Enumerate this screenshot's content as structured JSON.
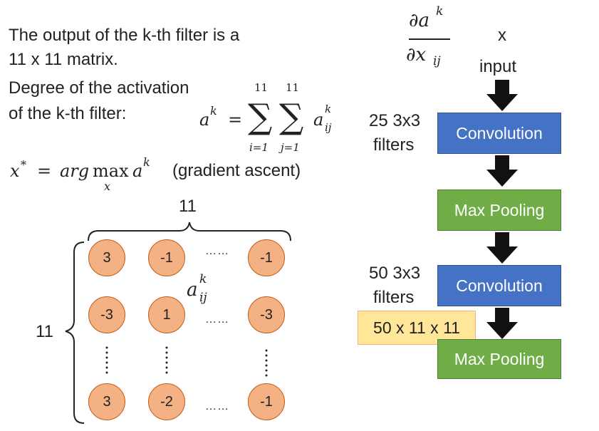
{
  "text": {
    "line1": "The output of the k-th filter is a",
    "line2": "11 x 11 matrix.",
    "line3": "Degree of the activation",
    "line4": "of the k-th filter:",
    "gradient": "(gradient ascent)",
    "top11": "11",
    "left11": "11"
  },
  "formula": {
    "a": "a",
    "k": "k",
    "eq": "=",
    "sigma": "∑",
    "upper1": "11",
    "upper2": "11",
    "lower1": "i=1",
    "lower2": "j=1",
    "aij_a": "a",
    "aij_sup": "k",
    "aij_sub": "ij"
  },
  "argmax": {
    "x": "x",
    "star": "*",
    "eq": "=",
    "arg": "arg",
    "max": "max",
    "under": "x",
    "a": "a",
    "k": "k"
  },
  "derivative": {
    "numerator": "∂a",
    "num_sup": "k",
    "denominator": "∂x",
    "den_sub": "ij"
  },
  "network": {
    "x_label": "x",
    "input_label": "input",
    "filters1_count": "25 3x3",
    "filters1_word": "filters",
    "conv1": "Convolution",
    "pool1": "Max Pooling",
    "filters2_count": "50 3x3",
    "filters2_word": "filters",
    "conv2": "Convolution",
    "pool2": "Max Pooling",
    "shape_box": "50 x 11 x 11"
  },
  "matrix": {
    "row1": [
      "3",
      "-1",
      "-1"
    ],
    "row2": [
      "-3",
      "1",
      "-3"
    ],
    "row3": [
      "3",
      "-2",
      "-1"
    ],
    "hdots": "……",
    "aij_a": "a",
    "aij_sup": "k",
    "aij_sub": "ij"
  },
  "colors": {
    "conv": "#4472c4",
    "pool": "#70ad47",
    "cell": "#f4b183",
    "shape_box": "#ffe699"
  }
}
